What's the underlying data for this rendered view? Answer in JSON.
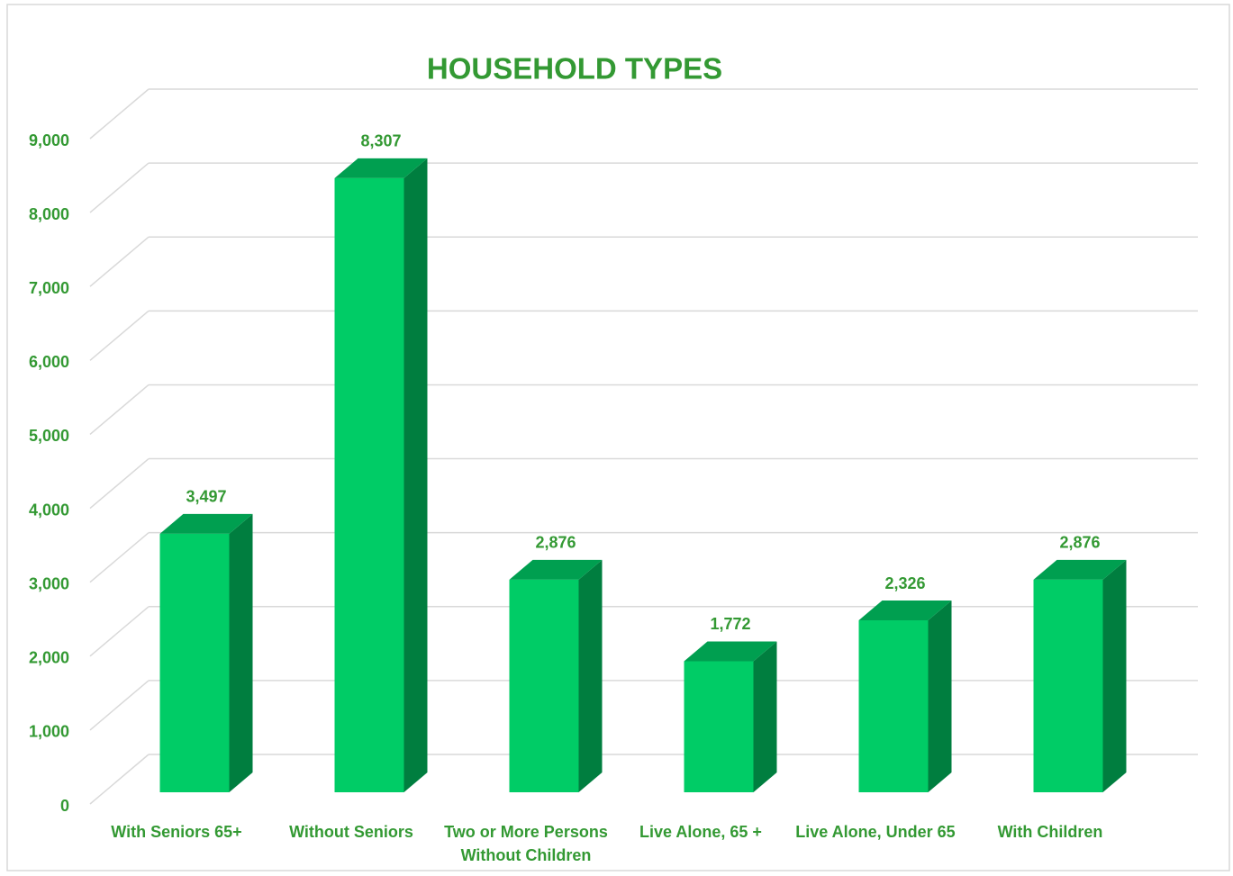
{
  "chart_data": {
    "type": "bar3d",
    "title": "HOUSEHOLD TYPES",
    "categories": [
      "With Seniors 65+",
      "Without Seniors",
      "Two or More Persons Without Children",
      "Live Alone, 65 +",
      "Live Alone, Under 65",
      "With Children"
    ],
    "values": [
      3497,
      8307,
      2876,
      1772,
      2326,
      2876
    ],
    "value_labels": [
      "3,497",
      "8,307",
      "2,876",
      "1,772",
      "2,326",
      "2,876"
    ],
    "color": "#00cc66",
    "ylim": [
      0,
      9000
    ],
    "yticks": [
      0,
      {
        "value": 1000,
        "label": "1,000"
      },
      {
        "value": 2000,
        "label": "2,000"
      },
      {
        "value": 3000,
        "label": "3,000"
      },
      {
        "value": 4000,
        "label": "4,000"
      },
      {
        "value": 5000,
        "label": "5,000"
      },
      {
        "value": 6000,
        "label": "6,000"
      },
      {
        "value": 7000,
        "label": "7,000"
      },
      {
        "value": 8000,
        "label": "8,000"
      },
      {
        "value": 9000,
        "label": "9,000"
      }
    ],
    "grid": true
  }
}
